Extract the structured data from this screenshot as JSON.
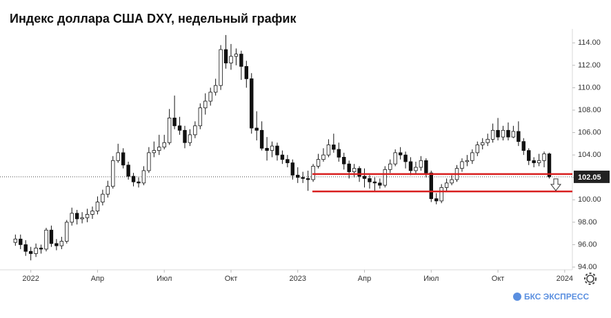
{
  "chart_data": {
    "type": "candlestick",
    "title": "Индекс доллара США DXY, недельный график",
    "brand": "БКС ЭКСПРЕСС",
    "last_price": 102.05,
    "levels": [
      102.3,
      100.75
    ],
    "level_color": "#d81e1e",
    "up_color": "#ffffff",
    "down_color": "#111111",
    "ylim": [
      94,
      115
    ],
    "yticks": [
      {
        "value": 94,
        "label": "94.00"
      },
      {
        "value": 96,
        "label": "96.00"
      },
      {
        "value": 98,
        "label": "98.00"
      },
      {
        "value": 100,
        "label": "100.00"
      },
      {
        "value": 102,
        "label": "102.00"
      },
      {
        "value": 104,
        "label": "104.00"
      },
      {
        "value": 106,
        "label": "106.00"
      },
      {
        "value": 108,
        "label": "108.00"
      },
      {
        "value": 110,
        "label": "110.00"
      },
      {
        "value": 112,
        "label": "112.00"
      },
      {
        "value": 114,
        "label": "114.00"
      }
    ],
    "xlim": [
      -3,
      108.5
    ],
    "xticks": [
      {
        "value": 3,
        "label": "2022"
      },
      {
        "value": 16,
        "label": "Апр"
      },
      {
        "value": 29,
        "label": "Июл"
      },
      {
        "value": 42,
        "label": "Окт"
      },
      {
        "value": 55,
        "label": "2023"
      },
      {
        "value": 68,
        "label": "Апр"
      },
      {
        "value": 81,
        "label": "Июл"
      },
      {
        "value": 94,
        "label": "Окт"
      },
      {
        "value": 107,
        "label": "2024"
      }
    ],
    "open": [
      96.2,
      96.5,
      96.0,
      95.4,
      95.2,
      95.7,
      95.6,
      97.3,
      96.1,
      95.9,
      96.3,
      98.0,
      98.8,
      98.3,
      98.4,
      98.7,
      99.0,
      99.8,
      100.5,
      101.2,
      103.5,
      104.2,
      103.1,
      102.1,
      101.6,
      101.5,
      102.6,
      104.2,
      104.4,
      104.7,
      105.1,
      107.3,
      106.6,
      106.2,
      105.1,
      105.8,
      106.6,
      108.2,
      108.8,
      109.6,
      110.2,
      113.4,
      112.2,
      112.8,
      113.0,
      111.9,
      110.8,
      106.4,
      106.2,
      104.6,
      104.4,
      104.8,
      104.0,
      103.6,
      103.3,
      102.2,
      102.0,
      101.9,
      101.8,
      103.0,
      103.6,
      104.0,
      104.9,
      104.5,
      103.8,
      103.2,
      102.5,
      102.8,
      102.1,
      101.9,
      101.6,
      101.5,
      101.3,
      102.7,
      103.2,
      104.2,
      104.0,
      103.4,
      102.6,
      102.9,
      103.5,
      102.4,
      100.1,
      99.9,
      101.1,
      101.5,
      101.8,
      102.8,
      103.4,
      103.5,
      104.2,
      104.9,
      105.1,
      105.4,
      106.2,
      105.6,
      106.2,
      105.6,
      106.1,
      105.2,
      104.4,
      103.5,
      103.3,
      103.5,
      104.1
    ],
    "high": [
      96.9,
      96.9,
      96.4,
      95.8,
      96.1,
      96.0,
      97.5,
      97.7,
      96.5,
      96.7,
      98.2,
      99.3,
      99.1,
      98.9,
      99.2,
      99.4,
      100.3,
      100.9,
      101.7,
      103.9,
      105.0,
      104.6,
      103.4,
      102.4,
      102.0,
      103.0,
      104.7,
      105.2,
      105.8,
      105.8,
      108.1,
      109.3,
      107.4,
      106.6,
      106.3,
      107.0,
      108.6,
      109.5,
      110.0,
      110.8,
      113.8,
      114.7,
      113.9,
      113.5,
      113.3,
      112.4,
      111.3,
      107.9,
      107.0,
      105.6,
      105.2,
      105.1,
      104.4,
      104.0,
      103.6,
      102.9,
      102.5,
      102.6,
      103.2,
      104.1,
      104.6,
      105.4,
      105.9,
      105.1,
      104.2,
      103.5,
      103.2,
      103.0,
      102.8,
      102.2,
      102.0,
      101.9,
      103.0,
      103.6,
      104.5,
      104.7,
      104.3,
      103.8,
      103.4,
      103.9,
      103.7,
      102.6,
      100.6,
      101.4,
      101.9,
      102.2,
      103.1,
      103.7,
      104.0,
      104.5,
      105.2,
      105.5,
      105.9,
      106.8,
      107.3,
      106.6,
      106.9,
      106.6,
      107.0,
      105.5,
      104.6,
      103.8,
      104.1,
      104.3,
      104.2
    ],
    "low": [
      95.9,
      95.6,
      95.0,
      94.6,
      94.9,
      95.2,
      95.4,
      95.8,
      95.5,
      95.6,
      96.1,
      97.7,
      97.8,
      97.9,
      98.0,
      98.3,
      98.7,
      99.5,
      100.2,
      101.0,
      103.3,
      102.8,
      101.8,
      101.2,
      101.1,
      101.3,
      102.4,
      103.8,
      104.0,
      104.5,
      104.9,
      106.3,
      105.8,
      104.6,
      104.8,
      105.5,
      106.3,
      107.6,
      108.4,
      109.3,
      109.8,
      111.7,
      111.6,
      112.0,
      110.7,
      110.0,
      105.9,
      105.3,
      104.4,
      103.5,
      103.8,
      103.5,
      103.2,
      102.9,
      101.8,
      101.5,
      101.5,
      100.8,
      101.6,
      102.8,
      103.4,
      103.8,
      104.2,
      103.4,
      102.7,
      101.9,
      102.0,
      101.6,
      101.1,
      101.0,
      100.8,
      101.0,
      101.1,
      102.4,
      103.0,
      103.6,
      102.8,
      102.2,
      102.3,
      102.6,
      102.0,
      99.8,
      99.6,
      99.7,
      100.8,
      101.3,
      101.6,
      102.5,
      103.0,
      103.2,
      103.9,
      104.5,
      104.8,
      105.1,
      105.3,
      105.3,
      105.3,
      105.5,
      104.8,
      104.0,
      103.1,
      102.9,
      103.0,
      102.9,
      101.9
    ],
    "close": [
      96.5,
      96.0,
      95.4,
      95.2,
      95.7,
      95.6,
      97.3,
      96.1,
      95.9,
      96.3,
      98.0,
      98.8,
      98.3,
      98.4,
      98.7,
      99.0,
      99.8,
      100.5,
      101.2,
      103.5,
      104.2,
      103.1,
      102.1,
      101.6,
      101.5,
      102.6,
      104.2,
      104.4,
      104.7,
      105.1,
      107.3,
      106.6,
      106.2,
      105.1,
      105.8,
      106.6,
      108.2,
      108.8,
      109.6,
      110.2,
      113.4,
      112.2,
      112.8,
      113.0,
      111.9,
      110.8,
      106.4,
      106.2,
      104.6,
      104.4,
      104.8,
      104.0,
      103.6,
      103.3,
      102.2,
      102.0,
      101.9,
      101.8,
      103.0,
      103.6,
      104.0,
      104.9,
      104.5,
      103.8,
      103.2,
      102.5,
      102.8,
      102.1,
      101.9,
      101.6,
      101.5,
      101.3,
      102.7,
      103.2,
      104.2,
      104.0,
      103.4,
      102.6,
      102.9,
      103.5,
      102.4,
      100.1,
      99.9,
      101.1,
      101.5,
      101.8,
      102.8,
      103.4,
      103.5,
      104.2,
      104.9,
      105.1,
      105.4,
      106.2,
      105.6,
      106.2,
      105.6,
      106.1,
      105.2,
      104.4,
      103.5,
      103.3,
      103.5,
      104.1,
      102.05
    ]
  }
}
